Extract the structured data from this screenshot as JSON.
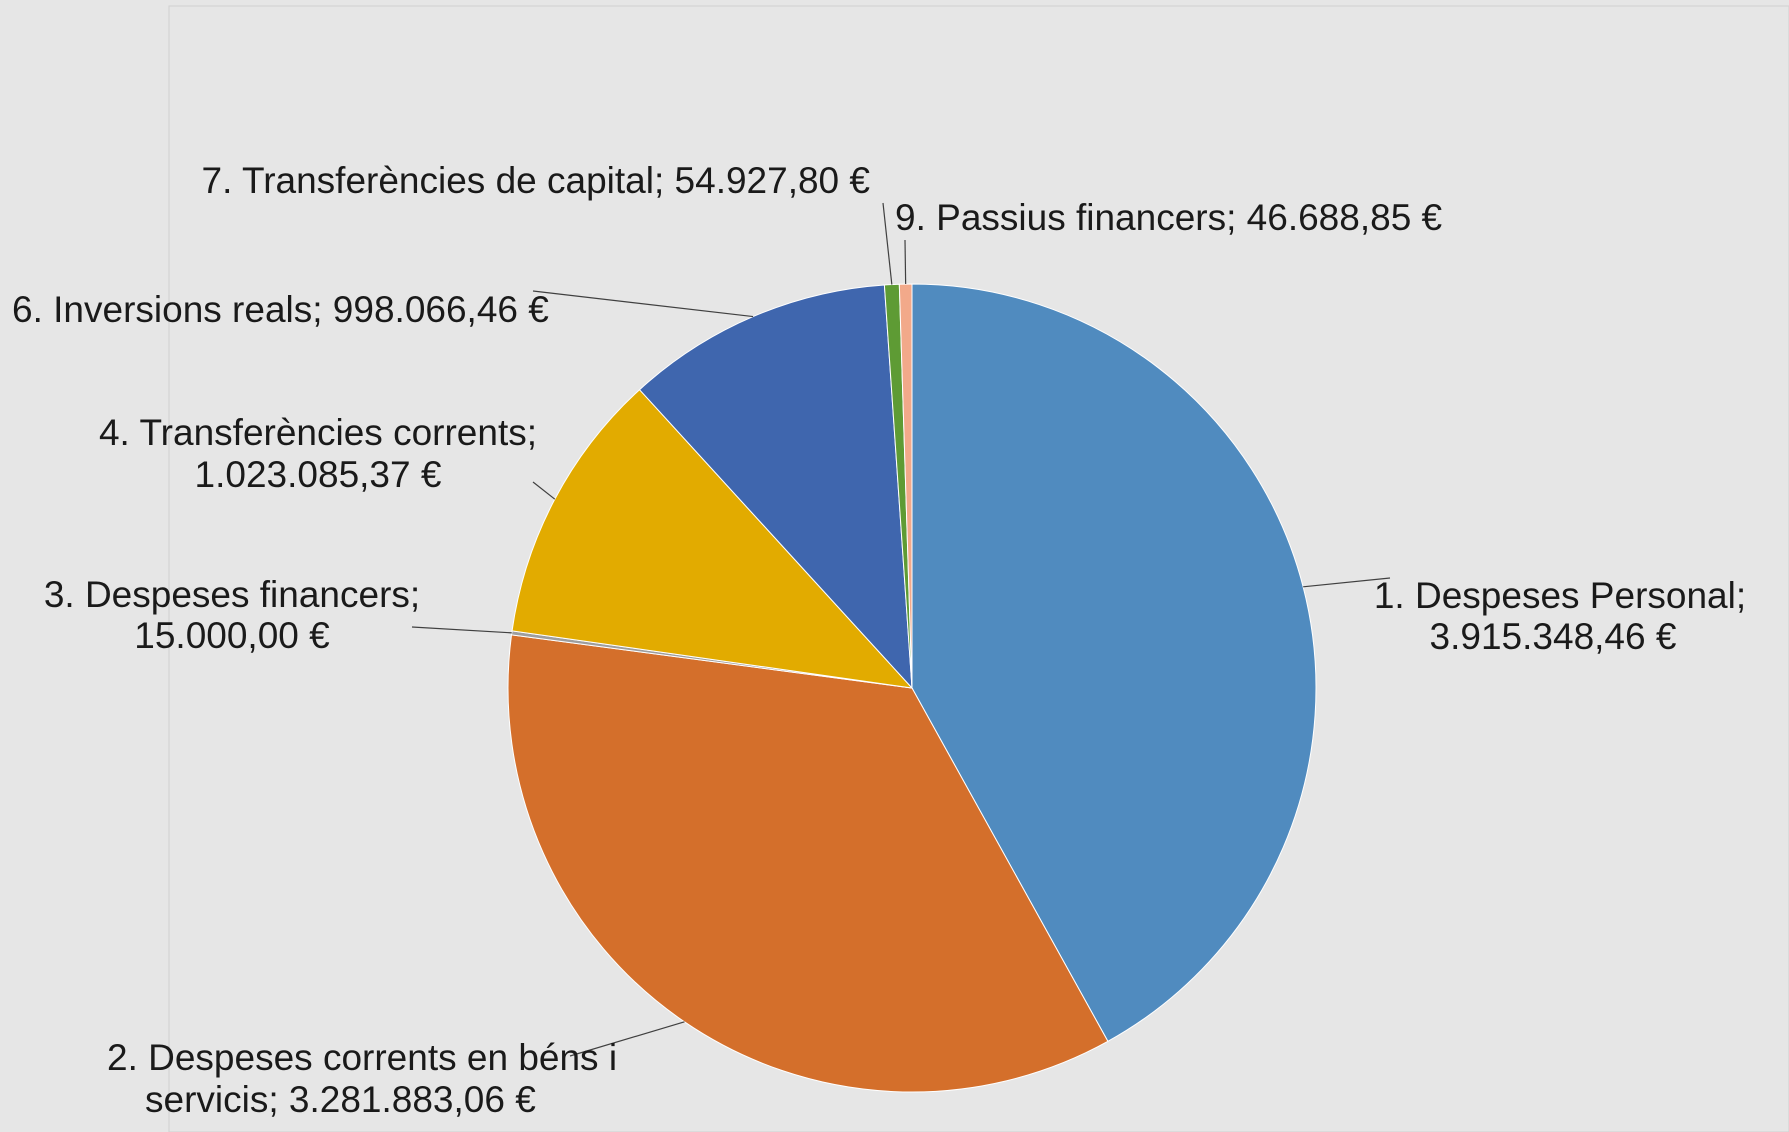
{
  "chart_data": {
    "type": "pie",
    "title": "",
    "slices": [
      {
        "label": "1. Despeses Personal",
        "value": 3915348.46,
        "value_text": "3.915.348,46 €",
        "color": "#508bbf"
      },
      {
        "label": "2. Despeses corrents en béns i servicis",
        "value": 3281883.06,
        "value_text": "3.281.883,06 €",
        "color": "#d46f2b"
      },
      {
        "label": "3. Despeses financers",
        "value": 15000.0,
        "value_text": "15.000,00 €",
        "color": "#9e9e9e"
      },
      {
        "label": "4. Transferències corrents",
        "value": 1023085.37,
        "value_text": "1.023.085,37 €",
        "color": "#e2ab00"
      },
      {
        "label": "6. Inversions reals",
        "value": 998066.46,
        "value_text": "998.066,46 €",
        "color": "#3f66ae"
      },
      {
        "label": "7. Transferències de capital",
        "value": 54927.8,
        "value_text": "54.927,80 €",
        "color": "#5e9b34"
      },
      {
        "label": "9. Passius financers",
        "value": 46688.85,
        "value_text": "46.688,85 €",
        "color": "#f2a98a"
      }
    ],
    "label_texts": {
      "s1_line1": "1. Despeses Personal;",
      "s1_line2": "3.915.348,46 €",
      "s2_line1": "2. Despeses corrents en béns i",
      "s2_line2": "servicis;  3.281.883,06 €",
      "s3_line1": "3. Despeses financers;",
      "s3_line2": "15.000,00 €",
      "s4_line1": "4. Transferències corrents;",
      "s4_line2": "1.023.085,37 €",
      "s6_line1": "6. Inversions reals;  998.066,46 €",
      "s7_line1": "7. Transferències de capital;  54.927,80 €",
      "s9_line1": "9. Passius financers;  46.688,85 €"
    }
  }
}
